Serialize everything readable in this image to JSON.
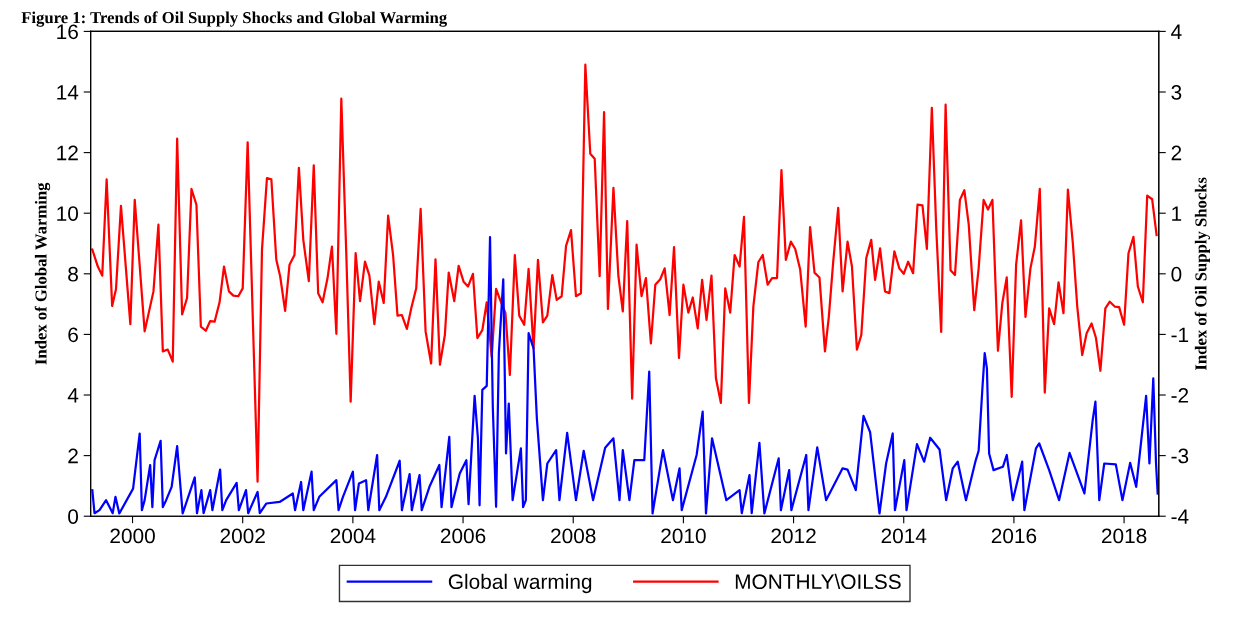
{
  "chart_data": {
    "type": "line",
    "title": "Figure 1: Trends of Oil Supply Shocks and Global Warming",
    "ylabel": "Index of Global Warming",
    "y2label": "Index of Oil Supply Shocks",
    "xlim": [
      1999.24,
      2018.63
    ],
    "xticks": [
      2000,
      2002,
      2004,
      2006,
      2008,
      2010,
      2012,
      2014,
      2016,
      2018
    ],
    "ylim": [
      0,
      16
    ],
    "yticks": [
      0,
      2,
      4,
      6,
      8,
      10,
      12,
      14,
      16
    ],
    "y2lim": [
      -4,
      4
    ],
    "y2ticks": [
      -4,
      -3,
      -2,
      -1,
      0,
      1,
      2,
      3,
      4
    ],
    "grid": false,
    "legend": "bottom",
    "marker": "none",
    "line_style": "solid",
    "series": [
      {
        "name": "Global warming",
        "color": "#0000ff",
        "axis": "y",
        "x": [
          1999.27,
          1999.31,
          1999.4,
          1999.52,
          1999.64,
          1999.69,
          1999.76,
          2000.01,
          2000.13,
          2000.17,
          2000.22,
          2000.32,
          2000.36,
          2000.4,
          2000.51,
          2000.55,
          2000.61,
          2000.71,
          2000.81,
          2000.91,
          2001.13,
          2001.17,
          2001.25,
          2001.29,
          2001.41,
          2001.45,
          2001.59,
          2001.63,
          2001.7,
          2001.89,
          2001.93,
          2002.06,
          2002.1,
          2002.27,
          2002.31,
          2002.43,
          2002.67,
          2002.91,
          2002.95,
          2003.06,
          2003.1,
          2003.25,
          2003.29,
          2003.39,
          2003.7,
          2003.74,
          2003.82,
          2004.0,
          2004.04,
          2004.11,
          2004.24,
          2004.28,
          2004.44,
          2004.48,
          2004.6,
          2004.85,
          2004.89,
          2005.03,
          2005.07,
          2005.21,
          2005.25,
          2005.39,
          2005.57,
          2005.61,
          2005.75,
          2005.79,
          2005.94,
          2006.06,
          2006.1,
          2006.21,
          2006.27,
          2006.3,
          2006.35,
          2006.43,
          2006.49,
          2006.54,
          2006.6,
          2006.65,
          2006.73,
          2006.78,
          2006.83,
          2006.9,
          2007.05,
          2007.09,
          2007.14,
          2007.19,
          2007.28,
          2007.34,
          2007.45,
          2007.53,
          2007.69,
          2007.75,
          2007.89,
          2008.05,
          2008.19,
          2008.36,
          2008.58,
          2008.73,
          2008.84,
          2008.9,
          2009.02,
          2009.11,
          2009.29,
          2009.38,
          2009.44,
          2009.63,
          2009.81,
          2009.93,
          2009.97,
          2010.24,
          2010.35,
          2010.41,
          2010.52,
          2010.78,
          2011.02,
          2011.06,
          2011.2,
          2011.24,
          2011.38,
          2011.47,
          2011.73,
          2011.77,
          2011.92,
          2011.96,
          2012.23,
          2012.27,
          2012.43,
          2012.59,
          2012.89,
          2012.98,
          2013.13,
          2013.27,
          2013.39,
          2013.56,
          2013.68,
          2013.8,
          2013.84,
          2014.01,
          2014.05,
          2014.24,
          2014.37,
          2014.48,
          2014.65,
          2014.77,
          2014.89,
          2014.98,
          2015.13,
          2015.3,
          2015.36,
          2015.43,
          2015.47,
          2015.51,
          2015.55,
          2015.63,
          2015.8,
          2015.87,
          2015.98,
          2016.15,
          2016.19,
          2016.4,
          2016.46,
          2016.64,
          2016.82,
          2017.01,
          2017.28,
          2017.43,
          2017.48,
          2017.55,
          2017.64,
          2017.85,
          2017.97,
          2018.11,
          2018.22,
          2018.4,
          2018.46,
          2018.53,
          2018.58,
          2018.61
        ],
        "values": [
          0.86,
          0.1,
          0.2,
          0.53,
          0.1,
          0.64,
          0.09,
          0.91,
          2.73,
          0.2,
          0.53,
          1.69,
          0.3,
          1.85,
          2.49,
          0.3,
          0.53,
          0.97,
          2.31,
          0.09,
          1.28,
          0.1,
          0.86,
          0.1,
          0.86,
          0.2,
          1.54,
          0.2,
          0.53,
          1.1,
          0.2,
          0.86,
          0.1,
          0.8,
          0.1,
          0.42,
          0.47,
          0.75,
          0.2,
          1.13,
          0.2,
          1.47,
          0.2,
          0.64,
          1.19,
          0.2,
          0.64,
          1.47,
          0.2,
          1.08,
          1.19,
          0.2,
          2.02,
          0.2,
          0.64,
          1.83,
          0.2,
          1.39,
          0.2,
          1.36,
          0.2,
          0.97,
          1.69,
          0.3,
          2.62,
          0.3,
          1.41,
          1.85,
          0.4,
          3.97,
          2.57,
          0.36,
          4.17,
          4.3,
          9.21,
          3.61,
          0.31,
          5.38,
          7.82,
          2.07,
          3.72,
          0.53,
          2.24,
          0.3,
          0.53,
          6.04,
          5.54,
          3.23,
          0.53,
          1.74,
          2.18,
          0.53,
          2.75,
          0.53,
          2.16,
          0.53,
          2.26,
          2.57,
          0.53,
          2.18,
          0.53,
          1.85,
          1.85,
          4.77,
          0.09,
          2.18,
          0.53,
          1.58,
          0.2,
          2.02,
          3.45,
          0.09,
          2.57,
          0.53,
          0.86,
          0.1,
          1.36,
          0.1,
          2.42,
          0.09,
          1.91,
          0.2,
          1.52,
          0.2,
          2.02,
          0.2,
          2.27,
          0.53,
          1.58,
          1.54,
          0.86,
          3.31,
          2.77,
          0.09,
          1.74,
          2.73,
          0.2,
          1.85,
          0.2,
          2.38,
          1.8,
          2.59,
          2.2,
          0.53,
          1.58,
          1.8,
          0.53,
          1.8,
          2.16,
          4.28,
          5.38,
          4.88,
          2.07,
          1.52,
          1.63,
          2.02,
          0.53,
          1.8,
          0.2,
          2.24,
          2.4,
          1.52,
          0.53,
          2.09,
          0.75,
          3.17,
          3.78,
          0.53,
          1.74,
          1.71,
          0.53,
          1.76,
          0.97,
          3.97,
          1.74,
          4.55,
          1.74,
          0.75
        ]
      },
      {
        "name": "MONTHLY\\OILSS",
        "color": "#ff0000",
        "axis": "y2",
        "x": [
          1999.27,
          1999.37,
          1999.45,
          1999.53,
          1999.63,
          1999.7,
          1999.79,
          1999.96,
          2000.04,
          2000.22,
          2000.38,
          2000.47,
          2000.55,
          2000.64,
          2000.73,
          2000.81,
          2000.9,
          2000.99,
          2001.07,
          2001.16,
          2001.24,
          2001.33,
          2001.41,
          2001.49,
          2001.58,
          2001.66,
          2001.75,
          2001.83,
          2001.92,
          2002.0,
          2002.09,
          2002.27,
          2002.35,
          2002.44,
          2002.52,
          2002.61,
          2002.68,
          2002.77,
          2002.85,
          2002.94,
          2003.02,
          2003.1,
          2003.2,
          2003.29,
          2003.37,
          2003.45,
          2003.54,
          2003.62,
          2003.7,
          2003.79,
          2003.88,
          2003.96,
          2004.05,
          2004.13,
          2004.22,
          2004.3,
          2004.39,
          2004.47,
          2004.56,
          2004.64,
          2004.73,
          2004.81,
          2004.89,
          2004.98,
          2005.06,
          2005.15,
          2005.23,
          2005.32,
          2005.42,
          2005.5,
          2005.58,
          2005.67,
          2005.74,
          2005.84,
          2005.92,
          2006.01,
          2006.09,
          2006.18,
          2006.26,
          2006.35,
          2006.43,
          2006.52,
          2006.6,
          2006.69,
          2006.77,
          2006.85,
          2006.94,
          2007.02,
          2007.11,
          2007.19,
          2007.28,
          2007.36,
          2007.45,
          2007.53,
          2007.62,
          2007.7,
          2007.79,
          2007.87,
          2007.96,
          2008.05,
          2008.14,
          2008.22,
          2008.31,
          2008.39,
          2008.48,
          2008.56,
          2008.63,
          2008.73,
          2008.82,
          2008.9,
          2008.98,
          2009.07,
          2009.15,
          2009.24,
          2009.32,
          2009.41,
          2009.49,
          2009.58,
          2009.66,
          2009.75,
          2009.83,
          2009.92,
          2010.0,
          2010.09,
          2010.17,
          2010.26,
          2010.34,
          2010.42,
          2010.51,
          2010.59,
          2010.68,
          2010.76,
          2010.85,
          2010.93,
          2011.02,
          2011.1,
          2011.19,
          2011.27,
          2011.36,
          2011.44,
          2011.53,
          2011.61,
          2011.7,
          2011.78,
          2011.86,
          2011.95,
          2012.03,
          2012.12,
          2012.22,
          2012.3,
          2012.38,
          2012.47,
          2012.57,
          2012.64,
          2012.72,
          2012.81,
          2012.89,
          2012.98,
          2013.06,
          2013.15,
          2013.23,
          2013.32,
          2013.41,
          2013.48,
          2013.57,
          2013.66,
          2013.74,
          2013.83,
          2013.92,
          2014.0,
          2014.08,
          2014.17,
          2014.25,
          2014.34,
          2014.42,
          2014.51,
          2014.59,
          2014.68,
          2014.76,
          2014.85,
          2014.93,
          2015.02,
          2015.1,
          2015.18,
          2015.28,
          2015.36,
          2015.45,
          2015.53,
          2015.61,
          2015.71,
          2015.79,
          2015.87,
          2015.96,
          2016.04,
          2016.13,
          2016.21,
          2016.3,
          2016.38,
          2016.47,
          2016.56,
          2016.64,
          2016.73,
          2016.81,
          2016.9,
          2016.98,
          2017.07,
          2017.15,
          2017.24,
          2017.32,
          2017.41,
          2017.49,
          2017.57,
          2017.66,
          2017.74,
          2017.83,
          2017.91,
          2018.0,
          2018.08,
          2018.17,
          2018.25,
          2018.34,
          2018.42,
          2018.51,
          2018.59
        ],
        "values": [
          0.4,
          0.12,
          -0.03,
          1.56,
          -0.53,
          -0.25,
          1.12,
          -0.83,
          1.22,
          -0.95,
          -0.29,
          0.81,
          -1.28,
          -1.25,
          -1.45,
          2.23,
          -0.67,
          -0.4,
          1.4,
          1.14,
          -0.87,
          -0.94,
          -0.78,
          -0.79,
          -0.47,
          0.12,
          -0.29,
          -0.36,
          -0.37,
          -0.24,
          2.17,
          -3.43,
          0.4,
          1.58,
          1.56,
          0.23,
          -0.04,
          -0.61,
          0.15,
          0.31,
          1.75,
          0.56,
          -0.12,
          1.79,
          -0.32,
          -0.47,
          -0.07,
          0.45,
          -0.99,
          2.89,
          0.34,
          -2.11,
          0.34,
          -0.45,
          0.2,
          -0.03,
          -0.83,
          -0.13,
          -0.48,
          0.96,
          0.31,
          -0.69,
          -0.68,
          -0.91,
          -0.57,
          -0.24,
          1.07,
          -0.95,
          -1.48,
          0.24,
          -1.5,
          -1.01,
          0.02,
          -0.45,
          0.13,
          -0.13,
          -0.21,
          0.0,
          -1.06,
          -0.93,
          -0.47,
          -1.37,
          -0.25,
          -0.47,
          -0.65,
          -1.67,
          0.31,
          -0.69,
          -0.84,
          0.08,
          -1.23,
          0.23,
          -0.8,
          -0.69,
          -0.02,
          -0.43,
          -0.37,
          0.46,
          0.72,
          -0.37,
          -0.32,
          3.45,
          1.98,
          1.9,
          -0.04,
          2.67,
          -0.58,
          1.42,
          -0.04,
          -0.62,
          0.87,
          -2.06,
          0.48,
          -0.37,
          -0.07,
          -1.15,
          -0.18,
          -0.09,
          0.09,
          -0.68,
          0.44,
          -1.39,
          -0.18,
          -0.64,
          -0.39,
          -0.9,
          -0.1,
          -0.76,
          -0.03,
          -1.72,
          -2.13,
          -0.24,
          -0.64,
          0.31,
          0.12,
          0.94,
          -2.13,
          -0.54,
          0.19,
          0.31,
          -0.18,
          -0.07,
          -0.07,
          1.71,
          0.23,
          0.53,
          0.41,
          0.07,
          -0.87,
          0.77,
          0.02,
          -0.06,
          -1.28,
          -0.71,
          0.2,
          1.09,
          -0.29,
          0.53,
          0.12,
          -1.25,
          -1.01,
          0.26,
          0.56,
          -0.1,
          0.42,
          -0.29,
          -0.32,
          0.37,
          0.09,
          0.0,
          0.2,
          0.01,
          1.14,
          1.13,
          0.41,
          2.74,
          0.75,
          -0.96,
          2.79,
          0.06,
          -0.02,
          1.22,
          1.38,
          0.81,
          -0.6,
          0.09,
          1.22,
          1.06,
          1.22,
          -1.27,
          -0.48,
          -0.06,
          -2.03,
          0.15,
          0.88,
          -0.71,
          0.09,
          0.45,
          1.4,
          -1.96,
          -0.57,
          -0.83,
          -0.14,
          -0.65,
          1.39,
          0.5,
          -0.54,
          -1.34,
          -0.98,
          -0.82,
          -1.06,
          -1.6,
          -0.57,
          -0.46,
          -0.54,
          -0.55,
          -0.84,
          0.34,
          0.61,
          -0.21,
          -0.47,
          1.29,
          1.23,
          0.64
        ]
      }
    ]
  }
}
